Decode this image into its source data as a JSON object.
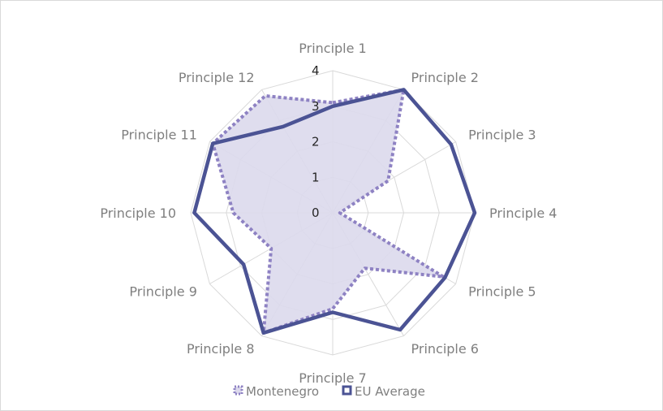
{
  "chart_data": {
    "type": "radar",
    "categories": [
      "Principle 1",
      "Principle 2",
      "Principle 3",
      "Principle 4",
      "Principle 5",
      "Principle 6",
      "Principle 7",
      "Principle 8",
      "Principle 9",
      "Principle 10",
      "Principle 11",
      "Principle 12"
    ],
    "r_ticks": [
      0,
      1,
      2,
      3,
      4
    ],
    "rlim": [
      0,
      4
    ],
    "grid": true,
    "legend_position": "bottom",
    "series": [
      {
        "name": "Montenegro",
        "values": [
          3.1,
          4.0,
          1.8,
          0.2,
          3.6,
          1.8,
          2.7,
          3.9,
          2.0,
          2.8,
          3.9,
          3.8
        ],
        "color": "#8e82c3",
        "style": "dotted",
        "fill": "#dcd9ec"
      },
      {
        "name": "EU Average",
        "values": [
          3.0,
          4.0,
          3.85,
          4.0,
          3.65,
          3.8,
          2.8,
          3.9,
          2.9,
          3.9,
          3.9,
          2.8
        ],
        "color": "#4b5394",
        "style": "solid"
      }
    ]
  }
}
